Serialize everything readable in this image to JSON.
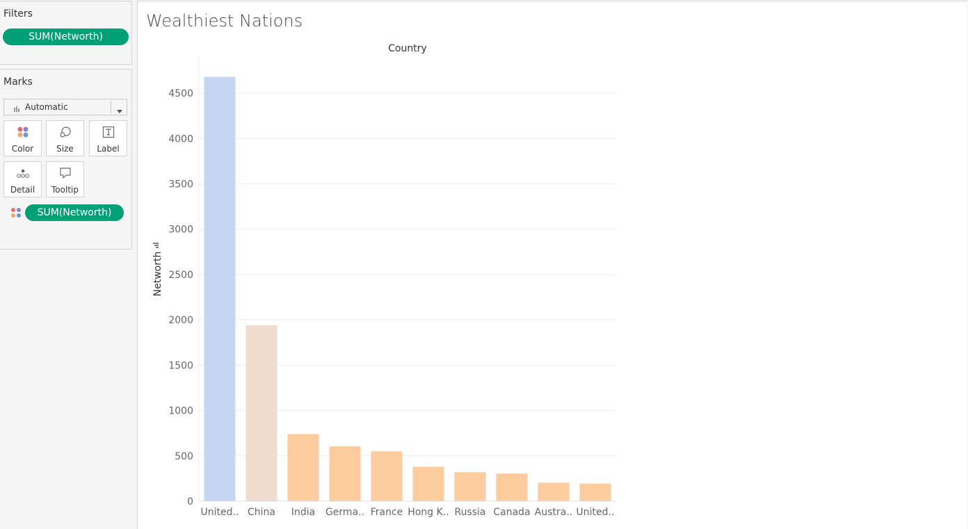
{
  "filters": {
    "title": "Filters",
    "pill": "SUM(Networth)"
  },
  "marks": {
    "title": "Marks",
    "mark_type": "Automatic",
    "buttons": {
      "color": "Color",
      "size": "Size",
      "label": "Label",
      "detail": "Detail",
      "tooltip": "Tooltip"
    },
    "color_pill": "SUM(Networth)"
  },
  "sheet": {
    "title": "Wealthiest Nations"
  },
  "chart_data": {
    "type": "bar",
    "title": "Wealthiest Nations",
    "column_header": "Country",
    "ylabel": "Networth",
    "ylim": [
      0,
      4700
    ],
    "yticks": [
      0,
      500,
      1000,
      1500,
      2000,
      2500,
      3000,
      3500,
      4000,
      4500
    ],
    "grid": true,
    "categories": [
      "United..",
      "China",
      "India",
      "Germa..",
      "France",
      "Hong K..",
      "Russia",
      "Canada",
      "Austra..",
      "United.."
    ],
    "values": [
      4680,
      1940,
      740,
      605,
      550,
      380,
      320,
      305,
      205,
      195
    ],
    "colors": [
      "#c4d6f1",
      "#f0dbce",
      "#fdcc9e",
      "#fdcc9e",
      "#fdcc9e",
      "#fdcc9e",
      "#fdcc9e",
      "#fdcc9e",
      "#fdcc9e",
      "#fdcc9e"
    ]
  }
}
